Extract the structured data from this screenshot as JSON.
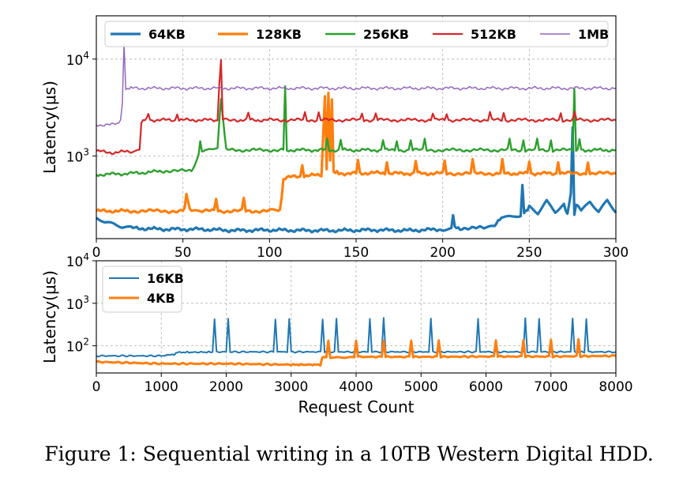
{
  "caption": "Figure 1: Sequential writing in a 10TB Western Digital HDD.",
  "chart_data": [
    {
      "type": "line",
      "ylabel": "Latency(μs)",
      "xlabel": "",
      "yscale": "log",
      "xlim": [
        0,
        300
      ],
      "ylim": [
        140,
        28000
      ],
      "xticks": [
        "0",
        "50",
        "100",
        "150",
        "200",
        "250",
        "300"
      ],
      "yticks": [
        {
          "value": 1000,
          "label": "10",
          "exp": "3"
        },
        {
          "value": 10000,
          "label": "10",
          "exp": "4"
        }
      ],
      "grid": true,
      "legend_position": "top",
      "series": [
        {
          "name": "64KB",
          "color": "#1f77b4",
          "lw": 3.2,
          "x": [
            0,
            5,
            10,
            15,
            20,
            40,
            60,
            80,
            100,
            120,
            140,
            160,
            180,
            200,
            205,
            206,
            207,
            210,
            225,
            230,
            232,
            235,
            240,
            245,
            246,
            247,
            250,
            255,
            260,
            265,
            270,
            272,
            274,
            275,
            276,
            277,
            280,
            285,
            290,
            295,
            300
          ],
          "values": [
            230,
            205,
            195,
            180,
            180,
            175,
            175,
            170,
            172,
            170,
            170,
            172,
            170,
            175,
            180,
            250,
            180,
            180,
            180,
            185,
            220,
            230,
            230,
            240,
            480,
            260,
            300,
            260,
            350,
            270,
            320,
            250,
            400,
            2000,
            250,
            320,
            270,
            330,
            260,
            340,
            260
          ]
        },
        {
          "name": "128KB",
          "color": "#ff7f0e",
          "lw": 3.2,
          "x": [
            0,
            20,
            50,
            52,
            53,
            54,
            55,
            60,
            100,
            105,
            106,
            107,
            108,
            110,
            120,
            130,
            132,
            133,
            134,
            135,
            136,
            137,
            140,
            150,
            160,
            170,
            180,
            190,
            200,
            230,
            250,
            270,
            300
          ],
          "values": [
            270,
            270,
            270,
            300,
            340,
            290,
            270,
            270,
            270,
            270,
            270,
            370,
            580,
            600,
            620,
            640,
            4200,
            700,
            4500,
            660,
            4000,
            680,
            660,
            660,
            670,
            660,
            660,
            660,
            660,
            660,
            660,
            660,
            660
          ]
        },
        {
          "name": "256KB",
          "color": "#2ca02c",
          "lw": 2.4,
          "x": [
            0,
            20,
            40,
            55,
            58,
            60,
            62,
            65,
            70,
            72,
            75,
            100,
            108,
            109,
            110,
            130,
            150,
            170,
            200,
            250,
            275,
            276,
            277,
            280,
            300
          ],
          "values": [
            640,
            660,
            700,
            700,
            900,
            1100,
            1150,
            1150,
            1200,
            4000,
            1150,
            1150,
            1150,
            4000,
            1150,
            1150,
            1150,
            1150,
            1150,
            1150,
            1150,
            5000,
            1150,
            1150,
            1150
          ]
        },
        {
          "name": "512KB",
          "color": "#d62728",
          "lw": 2.2,
          "x": [
            0,
            10,
            20,
            25,
            26,
            28,
            30,
            50,
            60,
            70,
            72,
            73,
            80,
            100,
            150,
            200,
            250,
            300
          ],
          "values": [
            1120,
            1080,
            1120,
            1150,
            2300,
            2350,
            2350,
            2350,
            2350,
            2350,
            9500,
            2350,
            2350,
            2350,
            2350,
            2350,
            2350,
            2350
          ]
        },
        {
          "name": "1MB",
          "color": "#9467bd",
          "lw": 1.5,
          "x": [
            0,
            10,
            14,
            16,
            18,
            20,
            40,
            60,
            80,
            100,
            120,
            140,
            160,
            180,
            200,
            220,
            240,
            260,
            280,
            300
          ],
          "values": [
            2100,
            2100,
            2300,
            5000,
            5000,
            5000,
            5000,
            5000,
            5000,
            5000,
            5000,
            5000,
            5000,
            5000,
            5000,
            5000,
            5000,
            5000,
            5000,
            5000
          ]
        }
      ]
    },
    {
      "type": "line",
      "ylabel": "Latency(μs)",
      "xlabel": "Request Count",
      "yscale": "log",
      "xlim": [
        0,
        8000
      ],
      "ylim": [
        23,
        10000
      ],
      "xticks": [
        "0",
        "1000",
        "2000",
        "3000",
        "4000",
        "5000",
        "6000",
        "7000",
        "8000"
      ],
      "yticks": [
        {
          "value": 100,
          "label": "10",
          "exp": "2"
        },
        {
          "value": 1000,
          "label": "10",
          "exp": "3"
        },
        {
          "value": 10000,
          "label": "10",
          "exp": "4"
        }
      ],
      "grid": true,
      "legend_position": "upper left",
      "series": [
        {
          "name": "16KB",
          "color": "#1f77b4",
          "lw": 2.0,
          "x": [
            0,
            1000,
            1200,
            1250,
            2000,
            3000,
            4000,
            5000,
            6000,
            7000,
            8000
          ],
          "values": [
            58,
            58,
            62,
            70,
            72,
            72,
            72,
            72,
            72,
            72,
            72
          ]
        },
        {
          "name": "4KB",
          "color": "#ff7f0e",
          "lw": 3.0,
          "x": [
            0,
            1000,
            2000,
            3000,
            3450,
            3480,
            4000,
            5000,
            6000,
            7000,
            8000
          ],
          "values": [
            42,
            38,
            38,
            36,
            36,
            52,
            55,
            55,
            56,
            56,
            58
          ]
        }
      ]
    }
  ]
}
